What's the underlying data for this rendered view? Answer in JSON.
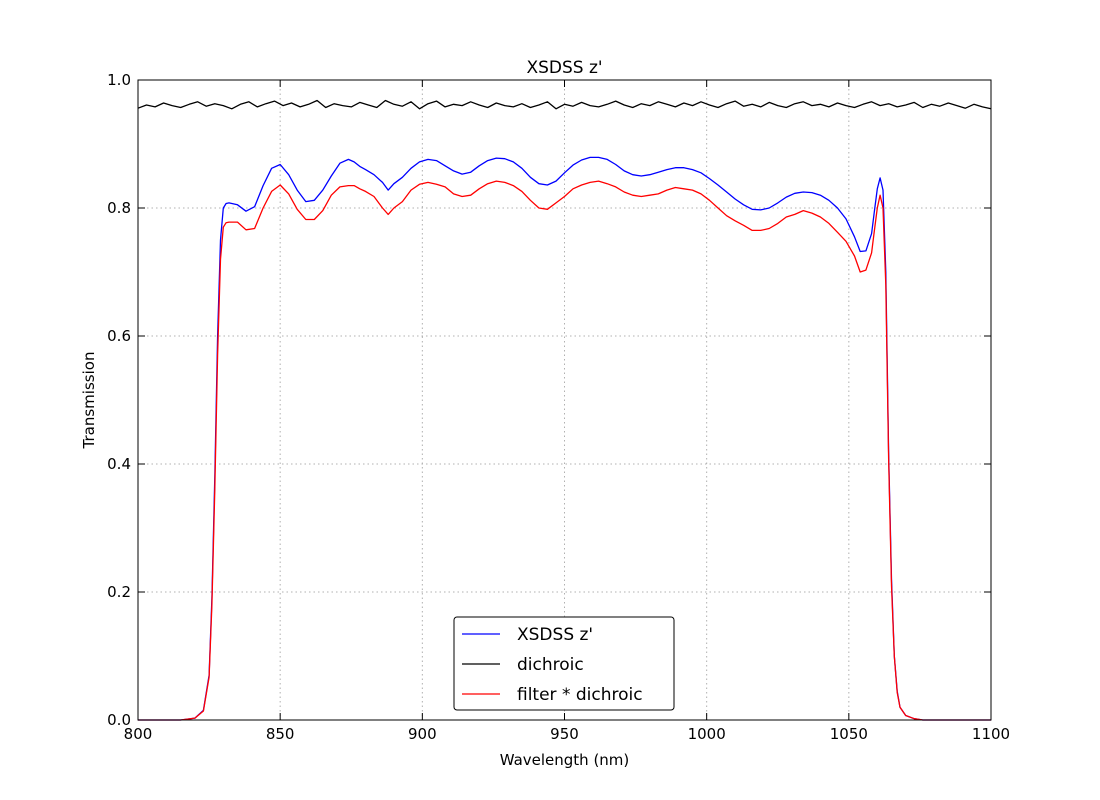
{
  "chart_data": {
    "type": "line",
    "title": "XSDSS z'",
    "xlabel": "Wavelength (nm)",
    "ylabel": "Transmission",
    "xlim": [
      800,
      1100
    ],
    "ylim": [
      0.0,
      1.0
    ],
    "x_ticks": [
      800,
      850,
      900,
      950,
      1000,
      1050,
      1100
    ],
    "x_tick_labels": [
      "800",
      "850",
      "900",
      "950",
      "1000",
      "1050",
      "1100"
    ],
    "y_ticks": [
      0.0,
      0.2,
      0.4,
      0.6,
      0.8,
      1.0
    ],
    "y_tick_labels": [
      "0.0",
      "0.2",
      "0.4",
      "0.6",
      "0.8",
      "1.0"
    ],
    "grid": true,
    "legend_position": "bottom-center",
    "series": [
      {
        "name": "XSDSS z'",
        "color": "#0000ff",
        "x": [
          800,
          815,
          820,
          823,
          825,
          826,
          827,
          828,
          829,
          830,
          831,
          832,
          835,
          838,
          841,
          844,
          847,
          850,
          853,
          856,
          859,
          862,
          865,
          868,
          871,
          874,
          876,
          878,
          880,
          883,
          886,
          888,
          890,
          893,
          896,
          899,
          902,
          905,
          908,
          911,
          914,
          917,
          920,
          923,
          926,
          929,
          932,
          935,
          938,
          941,
          944,
          947,
          950,
          953,
          956,
          959,
          962,
          965,
          968,
          971,
          974,
          977,
          980,
          983,
          986,
          989,
          992,
          995,
          998,
          1001,
          1004,
          1007,
          1010,
          1013,
          1016,
          1019,
          1022,
          1025,
          1028,
          1031,
          1034,
          1037,
          1040,
          1043,
          1046,
          1049,
          1052,
          1054,
          1056,
          1058,
          1059,
          1060,
          1061,
          1062,
          1063,
          1064,
          1065,
          1066,
          1067,
          1068,
          1070,
          1073,
          1076,
          1080,
          1090,
          1100
        ],
        "y": [
          0.0,
          0.0,
          0.003,
          0.015,
          0.07,
          0.19,
          0.38,
          0.6,
          0.75,
          0.8,
          0.807,
          0.808,
          0.805,
          0.795,
          0.802,
          0.835,
          0.862,
          0.868,
          0.852,
          0.828,
          0.81,
          0.812,
          0.828,
          0.85,
          0.87,
          0.876,
          0.872,
          0.865,
          0.86,
          0.852,
          0.84,
          0.828,
          0.838,
          0.848,
          0.862,
          0.872,
          0.876,
          0.874,
          0.866,
          0.858,
          0.853,
          0.856,
          0.866,
          0.874,
          0.878,
          0.877,
          0.872,
          0.862,
          0.848,
          0.838,
          0.836,
          0.842,
          0.855,
          0.867,
          0.875,
          0.879,
          0.879,
          0.876,
          0.868,
          0.858,
          0.852,
          0.85,
          0.852,
          0.856,
          0.86,
          0.863,
          0.863,
          0.86,
          0.855,
          0.846,
          0.836,
          0.825,
          0.814,
          0.805,
          0.798,
          0.797,
          0.8,
          0.808,
          0.817,
          0.823,
          0.825,
          0.824,
          0.82,
          0.812,
          0.8,
          0.783,
          0.755,
          0.732,
          0.733,
          0.76,
          0.795,
          0.83,
          0.847,
          0.828,
          0.7,
          0.42,
          0.22,
          0.1,
          0.045,
          0.02,
          0.007,
          0.002,
          0.0,
          0.0,
          0.0,
          0.0
        ]
      },
      {
        "name": "dichroic",
        "color": "#000000",
        "x": [
          800,
          803,
          806,
          809,
          812,
          815,
          818,
          821,
          824,
          827,
          830,
          833,
          836,
          839,
          842,
          845,
          848,
          851,
          854,
          857,
          860,
          863,
          866,
          869,
          872,
          875,
          878,
          881,
          884,
          887,
          890,
          893,
          896,
          899,
          902,
          905,
          908,
          911,
          914,
          917,
          920,
          923,
          926,
          929,
          932,
          935,
          938,
          941,
          944,
          947,
          950,
          953,
          956,
          959,
          962,
          965,
          968,
          971,
          974,
          977,
          980,
          983,
          986,
          989,
          992,
          995,
          998,
          1001,
          1004,
          1007,
          1010,
          1013,
          1016,
          1019,
          1022,
          1025,
          1028,
          1031,
          1034,
          1037,
          1040,
          1043,
          1046,
          1049,
          1052,
          1055,
          1058,
          1061,
          1064,
          1067,
          1070,
          1073,
          1076,
          1079,
          1082,
          1085,
          1088,
          1091,
          1094,
          1097,
          1100
        ],
        "y": [
          0.956,
          0.961,
          0.958,
          0.964,
          0.96,
          0.957,
          0.962,
          0.966,
          0.959,
          0.963,
          0.96,
          0.955,
          0.962,
          0.966,
          0.958,
          0.963,
          0.967,
          0.96,
          0.964,
          0.958,
          0.962,
          0.968,
          0.957,
          0.963,
          0.96,
          0.958,
          0.965,
          0.961,
          0.957,
          0.968,
          0.962,
          0.959,
          0.966,
          0.955,
          0.963,
          0.967,
          0.958,
          0.962,
          0.96,
          0.966,
          0.961,
          0.957,
          0.964,
          0.96,
          0.958,
          0.963,
          0.957,
          0.961,
          0.966,
          0.955,
          0.962,
          0.959,
          0.965,
          0.96,
          0.958,
          0.962,
          0.967,
          0.961,
          0.957,
          0.963,
          0.96,
          0.966,
          0.962,
          0.958,
          0.964,
          0.96,
          0.966,
          0.961,
          0.957,
          0.963,
          0.967,
          0.959,
          0.962,
          0.958,
          0.965,
          0.96,
          0.957,
          0.963,
          0.966,
          0.96,
          0.962,
          0.958,
          0.964,
          0.96,
          0.957,
          0.962,
          0.966,
          0.96,
          0.963,
          0.958,
          0.961,
          0.965,
          0.957,
          0.962,
          0.959,
          0.964,
          0.96,
          0.956,
          0.962,
          0.958,
          0.955
        ]
      },
      {
        "name": "filter * dichroic",
        "color": "#ff0000",
        "x": [
          800,
          815,
          820,
          823,
          825,
          826,
          827,
          828,
          829,
          830,
          831,
          832,
          835,
          838,
          841,
          844,
          847,
          850,
          853,
          856,
          859,
          862,
          865,
          868,
          871,
          874,
          876,
          878,
          880,
          883,
          886,
          888,
          890,
          893,
          896,
          899,
          902,
          905,
          908,
          911,
          914,
          917,
          920,
          923,
          926,
          929,
          932,
          935,
          938,
          941,
          944,
          947,
          950,
          953,
          956,
          959,
          962,
          965,
          968,
          971,
          974,
          977,
          980,
          983,
          986,
          989,
          992,
          995,
          998,
          1001,
          1004,
          1007,
          1010,
          1013,
          1016,
          1019,
          1022,
          1025,
          1028,
          1031,
          1034,
          1037,
          1040,
          1043,
          1046,
          1049,
          1052,
          1054,
          1056,
          1058,
          1059,
          1060,
          1061,
          1062,
          1063,
          1064,
          1065,
          1066,
          1067,
          1068,
          1070,
          1073,
          1076,
          1080,
          1090,
          1100
        ],
        "y": [
          0.0,
          0.0,
          0.003,
          0.014,
          0.067,
          0.18,
          0.36,
          0.57,
          0.72,
          0.77,
          0.777,
          0.778,
          0.778,
          0.766,
          0.768,
          0.8,
          0.826,
          0.836,
          0.822,
          0.798,
          0.782,
          0.782,
          0.796,
          0.82,
          0.833,
          0.835,
          0.835,
          0.83,
          0.826,
          0.818,
          0.8,
          0.79,
          0.8,
          0.81,
          0.828,
          0.837,
          0.84,
          0.837,
          0.833,
          0.822,
          0.818,
          0.82,
          0.83,
          0.838,
          0.842,
          0.84,
          0.835,
          0.826,
          0.812,
          0.8,
          0.798,
          0.808,
          0.818,
          0.83,
          0.836,
          0.84,
          0.842,
          0.838,
          0.833,
          0.825,
          0.82,
          0.818,
          0.82,
          0.822,
          0.828,
          0.832,
          0.83,
          0.828,
          0.822,
          0.812,
          0.8,
          0.788,
          0.78,
          0.773,
          0.765,
          0.765,
          0.768,
          0.776,
          0.786,
          0.79,
          0.796,
          0.792,
          0.786,
          0.776,
          0.762,
          0.748,
          0.725,
          0.7,
          0.703,
          0.73,
          0.765,
          0.8,
          0.82,
          0.8,
          0.68,
          0.41,
          0.21,
          0.1,
          0.043,
          0.02,
          0.007,
          0.002,
          0.0,
          0.0,
          0.0,
          0.0
        ]
      }
    ]
  }
}
